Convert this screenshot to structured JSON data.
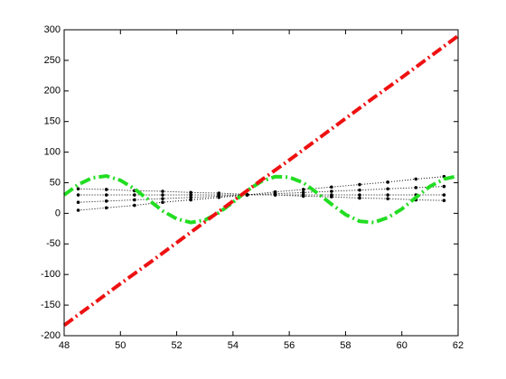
{
  "chart_data": {
    "type": "line",
    "xlim": [
      48,
      62
    ],
    "xticks": [
      48,
      50,
      52,
      54,
      56,
      58,
      60,
      62
    ],
    "ylim": [
      -200,
      300
    ],
    "yticks": [
      -200,
      -150,
      -100,
      -50,
      0,
      50,
      100,
      150,
      200,
      250,
      300
    ],
    "grid": false,
    "series": [
      {
        "color": "#000000",
        "line_style": "dotted",
        "marker": "dot",
        "x": [
          48.5,
          49.5,
          50.5,
          51.5,
          52.5,
          53.5,
          54.5,
          55.5,
          56.5,
          57.5,
          58.5,
          59.5,
          60.5,
          61.5
        ],
        "values": [
          5,
          9,
          13,
          18,
          22,
          26,
          30,
          35,
          39,
          43,
          47,
          51,
          56,
          60
        ]
      },
      {
        "color": "#000000",
        "line_style": "dotted",
        "marker": "dot",
        "x": [
          48.5,
          49.5,
          50.5,
          51.5,
          52.5,
          53.5,
          54.5,
          55.5,
          56.5,
          57.5,
          58.5,
          59.5,
          60.5,
          61.5
        ],
        "values": [
          18,
          20,
          22,
          24,
          26,
          28,
          30,
          32,
          34,
          36,
          38,
          40,
          42,
          44
        ]
      },
      {
        "color": "#000000",
        "line_style": "dotted",
        "marker": "dot",
        "x": [
          48.5,
          49.5,
          50.5,
          51.5,
          52.5,
          53.5,
          54.5,
          55.5,
          56.5,
          57.5,
          58.5,
          59.5,
          60.5,
          61.5
        ],
        "values": [
          30,
          30,
          30,
          30,
          30,
          30,
          30,
          30,
          30,
          30,
          30,
          30,
          30,
          30
        ]
      },
      {
        "color": "#000000",
        "line_style": "dotted",
        "marker": "dot",
        "x": [
          48.5,
          49.5,
          50.5,
          51.5,
          52.5,
          53.5,
          54.5,
          55.5,
          56.5,
          57.5,
          58.5,
          59.5,
          60.5,
          61.5
        ],
        "values": [
          40,
          39,
          37,
          36,
          34,
          33,
          31,
          30,
          28,
          27,
          25,
          24,
          22,
          21
        ]
      },
      {
        "color": "#22dd22",
        "line_style": "dashdot",
        "marker": "none",
        "x": [
          48,
          48.5,
          49,
          49.5,
          50,
          50.5,
          51,
          51.5,
          52,
          52.5,
          53,
          53.5,
          54,
          54.5,
          55,
          55.5,
          56,
          56.5,
          57,
          57.5,
          58,
          58.5,
          59,
          59.5,
          60,
          60.5,
          61,
          61.5,
          62
        ],
        "values": [
          30,
          47,
          58,
          61,
          54,
          40,
          22,
          4,
          -9,
          -15,
          -11,
          1,
          18,
          37,
          52,
          60,
          59,
          50,
          33,
          15,
          -2,
          -13,
          -15,
          -7,
          7,
          26,
          44,
          56,
          61
        ]
      },
      {
        "color": "#ee1111",
        "line_style": "dashdot",
        "marker": "none",
        "x": [
          48,
          49,
          50,
          51,
          52,
          53,
          54,
          55,
          56,
          57,
          58,
          59,
          60,
          61,
          62
        ],
        "values": [
          -183,
          -149,
          -115,
          -82,
          -48,
          -14,
          20,
          54,
          87,
          121,
          155,
          189,
          222,
          256,
          290
        ]
      }
    ]
  }
}
